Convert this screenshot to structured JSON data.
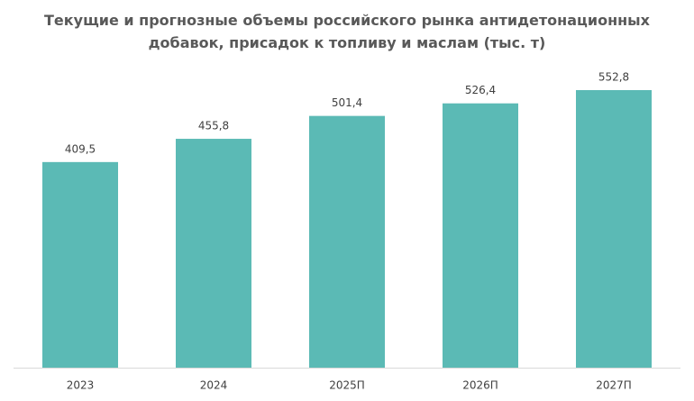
{
  "chart_data": {
    "type": "bar",
    "title": "Текущие и прогнозные объемы российского рынка антидетонационных добавок, присадок к топливу и маслам (тыс. т)",
    "categories": [
      "2023",
      "2024",
      "2025П",
      "2026П",
      "2027П"
    ],
    "values": [
      409.5,
      455.8,
      501.4,
      526.4,
      552.8
    ],
    "value_labels": [
      "409,5",
      "455,8",
      "501,4",
      "526,4",
      "552,8"
    ],
    "color": "#5bbab5"
  }
}
